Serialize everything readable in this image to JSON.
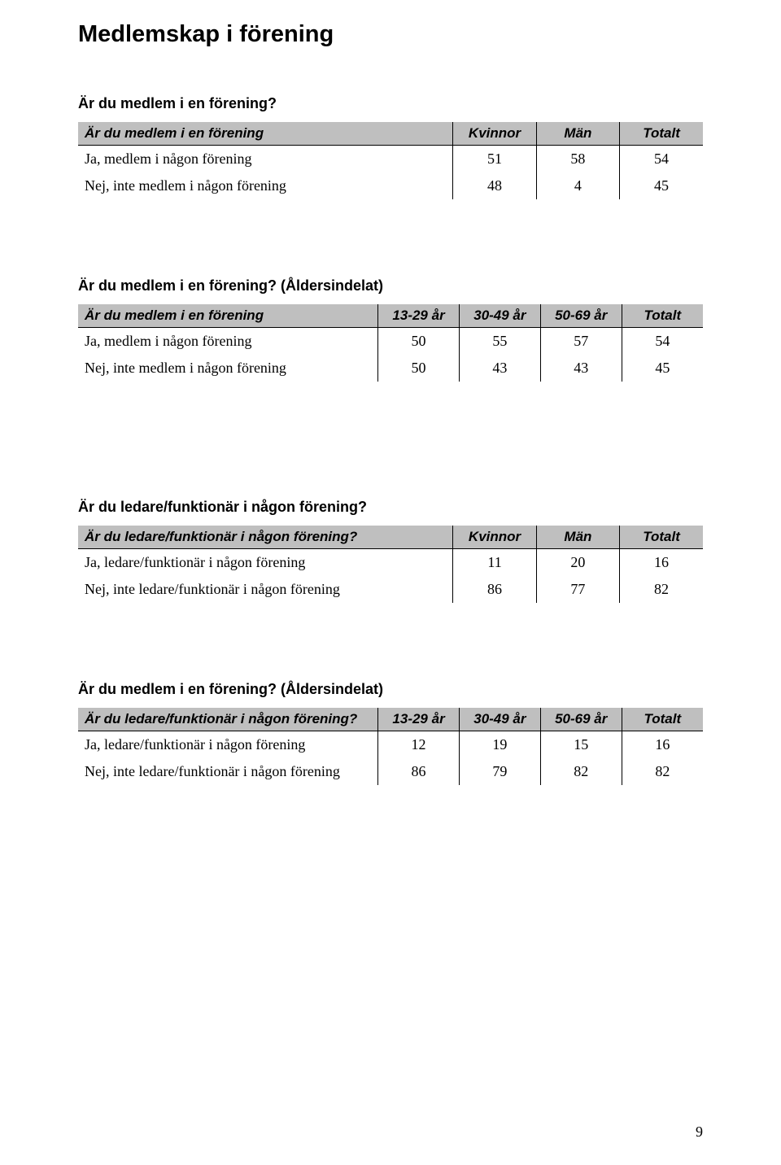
{
  "page_title": "Medlemskap i förening",
  "page_number": "9",
  "colors": {
    "header_bg": "#bfbfbf",
    "text": "#000000",
    "border": "#000000",
    "background": "#ffffff"
  },
  "sections": [
    {
      "heading": "Är du medlem i en förening?",
      "table": {
        "type": "table",
        "n_data_cols": 3,
        "header_label": "Är du medlem i en förening",
        "columns": [
          "Kvinnor",
          "Män",
          "Totalt"
        ],
        "rows": [
          {
            "label": "Ja, medlem i någon förening",
            "values": [
              "51",
              "58",
              "54"
            ]
          },
          {
            "label": "Nej, inte medlem i någon förening",
            "values": [
              "48",
              "4",
              "45"
            ]
          }
        ]
      }
    },
    {
      "heading": "Är du medlem i en förening? (Åldersindelat)",
      "table": {
        "type": "table",
        "n_data_cols": 4,
        "header_label": "Är du medlem i en förening",
        "columns": [
          "13-29 år",
          "30-49 år",
          "50-69 år",
          "Totalt"
        ],
        "rows": [
          {
            "label": "Ja, medlem i någon förening",
            "values": [
              "50",
              "55",
              "57",
              "54"
            ]
          },
          {
            "label": "Nej, inte medlem i någon förening",
            "values": [
              "50",
              "43",
              "43",
              "45"
            ]
          }
        ]
      },
      "gap_after": "big"
    },
    {
      "heading": "Är du ledare/funktionär i någon förening?",
      "table": {
        "type": "table",
        "n_data_cols": 3,
        "header_label": "Är du ledare/funktionär i någon förening?",
        "columns": [
          "Kvinnor",
          "Män",
          "Totalt"
        ],
        "rows": [
          {
            "label": "Ja, ledare/funktionär i någon förening",
            "values": [
              "11",
              "20",
              "16"
            ]
          },
          {
            "label": "Nej, inte ledare/funktionär i någon förening",
            "values": [
              "86",
              "77",
              "82"
            ]
          }
        ]
      }
    },
    {
      "heading": "Är du medlem i en förening? (Åldersindelat)",
      "table": {
        "type": "table",
        "n_data_cols": 4,
        "header_label": "Är du ledare/funktionär i någon förening?",
        "columns": [
          "13-29 år",
          "30-49 år",
          "50-69 år",
          "Totalt"
        ],
        "rows": [
          {
            "label": "Ja, ledare/funktionär i någon förening",
            "values": [
              "12",
              "19",
              "15",
              "16"
            ]
          },
          {
            "label": "Nej, inte ledare/funktionär i någon förening",
            "values": [
              "86",
              "79",
              "82",
              "82"
            ]
          }
        ]
      }
    }
  ]
}
